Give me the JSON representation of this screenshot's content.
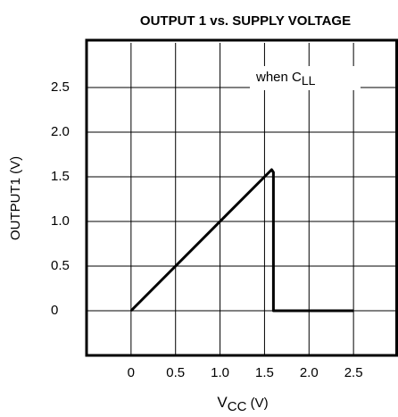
{
  "chart_data": {
    "type": "line",
    "title": "OUTPUT 1 vs. SUPPLY VOLTAGE",
    "xlabel": {
      "text": "V",
      "sub": "CC",
      "suffix": " (V)"
    },
    "ylabel": "OUTPUT1 (V)",
    "annotation": {
      "text": "when C",
      "sub": "LL"
    },
    "x": [
      0,
      1.58,
      1.6,
      1.6,
      2.5
    ],
    "series": [
      {
        "name": "OUTPUT1",
        "color": "#000000",
        "values": [
          0,
          1.58,
          1.55,
          0,
          0
        ]
      }
    ],
    "xlim": [
      -0.5,
      3.0
    ],
    "ylim": [
      -0.5,
      3.0
    ],
    "xticks": [
      0,
      0.5,
      {
        "value": 1,
        "label": "1.0"
      },
      1.5,
      {
        "value": 2,
        "label": "2.0"
      },
      2.5
    ],
    "yticks": [
      0,
      0.5,
      {
        "value": 1,
        "label": "1.0"
      },
      1.5,
      {
        "value": 2,
        "label": "2.0"
      },
      2.5
    ],
    "grid": true
  }
}
